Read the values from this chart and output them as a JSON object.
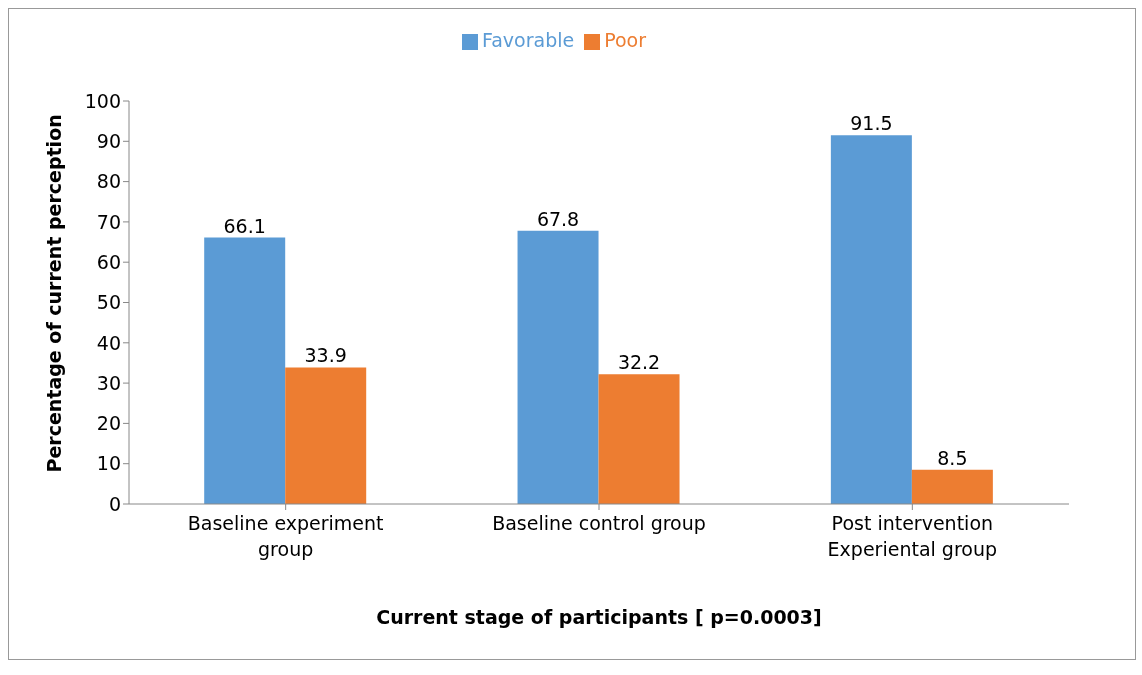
{
  "chart_data": {
    "type": "bar",
    "xlabel": "Current stage of participants [ p=0.0003]",
    "ylabel": "Percentage of current perception",
    "categories": [
      "Baseline experiment group",
      "Baseline control group",
      "Post intervention Experiental group"
    ],
    "series": [
      {
        "name": "Favorable",
        "color": "#5b9bd5",
        "values": [
          66.1,
          67.8,
          91.5
        ]
      },
      {
        "name": "Poor",
        "color": "#ed7d31",
        "values": [
          33.9,
          32.2,
          8.5
        ]
      }
    ],
    "ylim": [
      0,
      100
    ],
    "yticks": [
      0,
      10,
      20,
      30,
      40,
      50,
      60,
      70,
      80,
      90,
      100
    ],
    "data_labels": true,
    "legend": "top",
    "grid": false
  }
}
